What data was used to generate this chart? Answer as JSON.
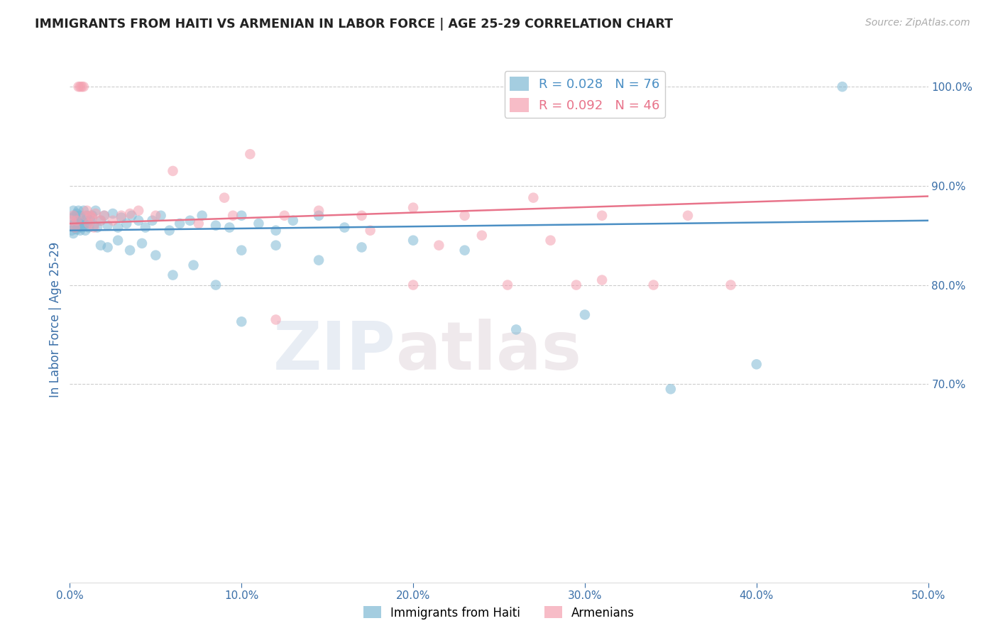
{
  "title": "IMMIGRANTS FROM HAITI VS ARMENIAN IN LABOR FORCE | AGE 25-29 CORRELATION CHART",
  "source": "Source: ZipAtlas.com",
  "ylabel": "In Labor Force | Age 25-29",
  "xlim": [
    0.0,
    0.5
  ],
  "ylim": [
    0.5,
    1.03
  ],
  "yticks": [
    0.7,
    0.8,
    0.9,
    1.0
  ],
  "ytick_labels": [
    "70.0%",
    "80.0%",
    "90.0%",
    "100.0%"
  ],
  "xticks": [
    0.0,
    0.1,
    0.2,
    0.3,
    0.4,
    0.5
  ],
  "xtick_labels": [
    "0.0%",
    "10.0%",
    "20.0%",
    "30.0%",
    "40.0%",
    "50.0%"
  ],
  "haiti_R": 0.028,
  "haiti_N": 76,
  "armenian_R": 0.092,
  "armenian_N": 46,
  "haiti_color": "#7eb8d4",
  "armenian_color": "#f4a0b0",
  "haiti_line_color": "#4b8fc4",
  "armenian_line_color": "#e8738a",
  "legend_haiti": "Immigrants from Haiti",
  "legend_armenian": "Armenians",
  "watermark_part1": "ZIP",
  "watermark_part2": "atlas",
  "background_color": "#ffffff",
  "grid_color": "#cccccc",
  "title_color": "#222222",
  "axis_label_color": "#3a6fa8",
  "tick_color": "#3a6fa8",
  "haiti_x": [
    0.001,
    0.001,
    0.002,
    0.002,
    0.002,
    0.003,
    0.003,
    0.003,
    0.004,
    0.004,
    0.004,
    0.005,
    0.005,
    0.005,
    0.006,
    0.006,
    0.006,
    0.007,
    0.007,
    0.008,
    0.008,
    0.009,
    0.009,
    0.01,
    0.01,
    0.011,
    0.012,
    0.013,
    0.014,
    0.015,
    0.016,
    0.018,
    0.02,
    0.022,
    0.025,
    0.028,
    0.03,
    0.033,
    0.036,
    0.04,
    0.044,
    0.048,
    0.053,
    0.058,
    0.064,
    0.07,
    0.077,
    0.085,
    0.093,
    0.1,
    0.11,
    0.12,
    0.13,
    0.145,
    0.16,
    0.018,
    0.022,
    0.028,
    0.035,
    0.042,
    0.05,
    0.06,
    0.072,
    0.085,
    0.1,
    0.12,
    0.145,
    0.17,
    0.2,
    0.23,
    0.26,
    0.3,
    0.35,
    0.4,
    0.45,
    0.1
  ],
  "haiti_y": [
    0.86,
    0.855,
    0.868,
    0.852,
    0.875,
    0.862,
    0.858,
    0.87,
    0.856,
    0.865,
    0.872,
    0.86,
    0.858,
    0.875,
    0.862,
    0.87,
    0.855,
    0.858,
    0.865,
    0.86,
    0.875,
    0.865,
    0.855,
    0.862,
    0.87,
    0.858,
    0.865,
    0.87,
    0.86,
    0.875,
    0.858,
    0.865,
    0.87,
    0.86,
    0.872,
    0.858,
    0.868,
    0.862,
    0.87,
    0.865,
    0.858,
    0.865,
    0.87,
    0.855,
    0.862,
    0.865,
    0.87,
    0.86,
    0.858,
    0.87,
    0.862,
    0.855,
    0.865,
    0.87,
    0.858,
    0.84,
    0.838,
    0.845,
    0.835,
    0.842,
    0.83,
    0.81,
    0.82,
    0.8,
    0.835,
    0.84,
    0.825,
    0.838,
    0.845,
    0.835,
    0.755,
    0.77,
    0.695,
    0.72,
    1.0,
    0.763
  ],
  "armenian_x": [
    0.001,
    0.002,
    0.003,
    0.004,
    0.005,
    0.006,
    0.007,
    0.008,
    0.009,
    0.01,
    0.011,
    0.012,
    0.013,
    0.014,
    0.015,
    0.018,
    0.02,
    0.025,
    0.03,
    0.035,
    0.04,
    0.05,
    0.06,
    0.075,
    0.09,
    0.105,
    0.125,
    0.145,
    0.17,
    0.2,
    0.23,
    0.27,
    0.31,
    0.36,
    0.12,
    0.2,
    0.24,
    0.28,
    0.31,
    0.34,
    0.095,
    0.175,
    0.215,
    0.255,
    0.295,
    0.385
  ],
  "armenian_y": [
    0.865,
    0.87,
    0.858,
    0.865,
    1.0,
    1.0,
    1.0,
    1.0,
    0.87,
    0.875,
    0.862,
    0.87,
    0.868,
    0.858,
    0.872,
    0.865,
    0.87,
    0.865,
    0.87,
    0.872,
    0.875,
    0.87,
    0.915,
    0.862,
    0.888,
    0.932,
    0.87,
    0.875,
    0.87,
    0.878,
    0.87,
    0.888,
    0.87,
    0.87,
    0.765,
    0.8,
    0.85,
    0.845,
    0.805,
    0.8,
    0.87,
    0.855,
    0.84,
    0.8,
    0.8,
    0.8
  ]
}
